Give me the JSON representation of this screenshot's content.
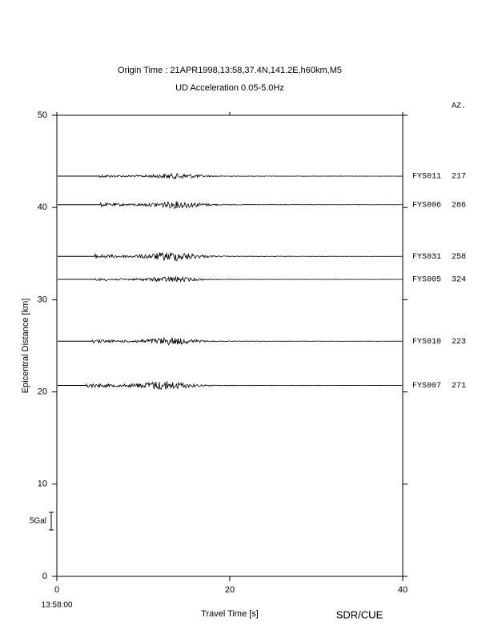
{
  "chart_data": {
    "type": "record-section",
    "title": "Origin Time : 21APR1998,13:58,37.4N,141.2E,h60km,M5",
    "subtitle": "UD Acceleration 0.05-5.0Hz",
    "azimuth_header": "AZ.",
    "ylabel": "Epicentral Distance [km]",
    "xlabel": "Travel Time [s]",
    "x_origin_label": "13:58:00",
    "credit": "SDR/CUE",
    "scale_label": "5Gal",
    "xlim": [
      0,
      40
    ],
    "xticks": [
      0,
      20,
      40
    ],
    "ylim": [
      0,
      50
    ],
    "yticks": [
      0,
      10,
      20,
      30,
      40,
      50
    ],
    "color": "#000000",
    "traces": [
      {
        "station": "FYS011",
        "azimuth": 217,
        "distance": 43.4,
        "onset": 4.8
      },
      {
        "station": "FYS006",
        "azimuth": 286,
        "distance": 40.3,
        "onset": 5.0
      },
      {
        "station": "FYS031",
        "azimuth": 258,
        "distance": 34.7,
        "onset": 4.4
      },
      {
        "station": "FYS005",
        "azimuth": 324,
        "distance": 32.2,
        "onset": 4.4
      },
      {
        "station": "FYS010",
        "azimuth": 223,
        "distance": 25.5,
        "onset": 4.1
      },
      {
        "station": "FYS007",
        "azimuth": 271,
        "distance": 20.7,
        "onset": 3.4
      }
    ]
  }
}
